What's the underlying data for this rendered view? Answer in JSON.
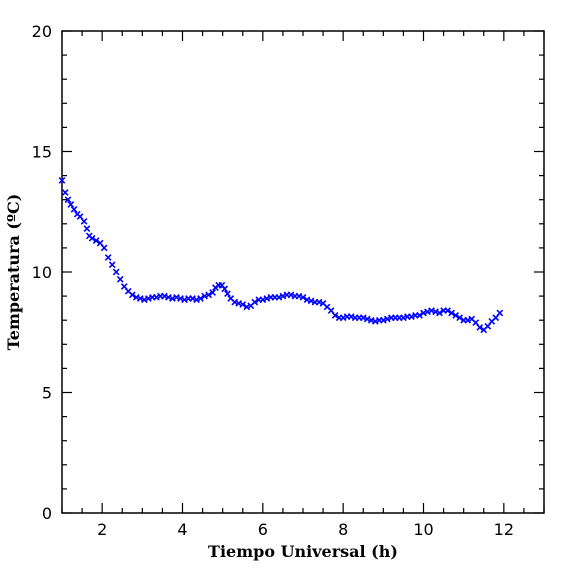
{
  "chart_data": {
    "type": "scatter",
    "title": "",
    "xlabel": "Tiempo Universal (h)",
    "ylabel": "Temperatura (ºC)",
    "xlim": [
      1,
      13
    ],
    "ylim": [
      0,
      20
    ],
    "xticks": [
      2,
      4,
      6,
      8,
      10,
      12
    ],
    "xtick_labels": [
      "2",
      "4",
      "6",
      "8",
      "10",
      "12"
    ],
    "yticks": [
      0,
      5,
      10,
      15,
      20
    ],
    "ytick_labels": [
      "0",
      "5",
      "10",
      "15",
      "20"
    ],
    "grid": false,
    "marker": "x",
    "marker_color": "#0000ff",
    "series": [
      {
        "name": "",
        "points": [
          [
            1.0,
            13.8
          ],
          [
            1.08,
            13.3
          ],
          [
            1.15,
            13.0
          ],
          [
            1.22,
            12.8
          ],
          [
            1.3,
            12.6
          ],
          [
            1.38,
            12.4
          ],
          [
            1.45,
            12.3
          ],
          [
            1.55,
            12.1
          ],
          [
            1.62,
            11.8
          ],
          [
            1.68,
            11.5
          ],
          [
            1.75,
            11.4
          ],
          [
            1.85,
            11.3
          ],
          [
            1.95,
            11.2
          ],
          [
            2.05,
            11.0
          ],
          [
            2.15,
            10.6
          ],
          [
            2.25,
            10.3
          ],
          [
            2.35,
            10.0
          ],
          [
            2.45,
            9.7
          ],
          [
            2.55,
            9.4
          ],
          [
            2.65,
            9.2
          ],
          [
            2.75,
            9.05
          ],
          [
            2.85,
            8.95
          ],
          [
            2.95,
            8.9
          ],
          [
            3.05,
            8.85
          ],
          [
            3.15,
            8.9
          ],
          [
            3.25,
            8.95
          ],
          [
            3.35,
            8.95
          ],
          [
            3.45,
            9.0
          ],
          [
            3.55,
            9.0
          ],
          [
            3.65,
            8.95
          ],
          [
            3.75,
            8.9
          ],
          [
            3.85,
            8.95
          ],
          [
            3.95,
            8.9
          ],
          [
            4.05,
            8.85
          ],
          [
            4.15,
            8.9
          ],
          [
            4.25,
            8.9
          ],
          [
            4.35,
            8.85
          ],
          [
            4.45,
            8.9
          ],
          [
            4.55,
            9.0
          ],
          [
            4.65,
            9.05
          ],
          [
            4.75,
            9.15
          ],
          [
            4.82,
            9.35
          ],
          [
            4.9,
            9.45
          ],
          [
            4.98,
            9.45
          ],
          [
            5.05,
            9.3
          ],
          [
            5.12,
            9.1
          ],
          [
            5.2,
            8.9
          ],
          [
            5.3,
            8.75
          ],
          [
            5.4,
            8.7
          ],
          [
            5.5,
            8.65
          ],
          [
            5.6,
            8.55
          ],
          [
            5.7,
            8.6
          ],
          [
            5.8,
            8.75
          ],
          [
            5.9,
            8.85
          ],
          [
            6.0,
            8.85
          ],
          [
            6.1,
            8.9
          ],
          [
            6.2,
            8.95
          ],
          [
            6.3,
            8.95
          ],
          [
            6.4,
            8.95
          ],
          [
            6.5,
            9.0
          ],
          [
            6.6,
            9.05
          ],
          [
            6.7,
            9.05
          ],
          [
            6.8,
            9.0
          ],
          [
            6.9,
            9.0
          ],
          [
            7.0,
            8.95
          ],
          [
            7.1,
            8.85
          ],
          [
            7.2,
            8.8
          ],
          [
            7.3,
            8.75
          ],
          [
            7.4,
            8.75
          ],
          [
            7.5,
            8.7
          ],
          [
            7.6,
            8.55
          ],
          [
            7.7,
            8.4
          ],
          [
            7.8,
            8.2
          ],
          [
            7.9,
            8.1
          ],
          [
            8.0,
            8.1
          ],
          [
            8.1,
            8.15
          ],
          [
            8.2,
            8.15
          ],
          [
            8.3,
            8.1
          ],
          [
            8.4,
            8.1
          ],
          [
            8.5,
            8.1
          ],
          [
            8.6,
            8.05
          ],
          [
            8.7,
            8.0
          ],
          [
            8.8,
            7.95
          ],
          [
            8.9,
            8.0
          ],
          [
            9.0,
            8.0
          ],
          [
            9.1,
            8.05
          ],
          [
            9.2,
            8.1
          ],
          [
            9.3,
            8.1
          ],
          [
            9.4,
            8.1
          ],
          [
            9.5,
            8.1
          ],
          [
            9.6,
            8.15
          ],
          [
            9.7,
            8.15
          ],
          [
            9.8,
            8.2
          ],
          [
            9.9,
            8.2
          ],
          [
            10.0,
            8.3
          ],
          [
            10.1,
            8.35
          ],
          [
            10.2,
            8.4
          ],
          [
            10.3,
            8.35
          ],
          [
            10.4,
            8.3
          ],
          [
            10.5,
            8.4
          ],
          [
            10.6,
            8.4
          ],
          [
            10.7,
            8.3
          ],
          [
            10.8,
            8.2
          ],
          [
            10.9,
            8.1
          ],
          [
            11.0,
            8.0
          ],
          [
            11.1,
            8.0
          ],
          [
            11.2,
            8.05
          ],
          [
            11.3,
            7.9
          ],
          [
            11.4,
            7.7
          ],
          [
            11.5,
            7.6
          ],
          [
            11.6,
            7.75
          ],
          [
            11.7,
            7.95
          ],
          [
            11.8,
            8.1
          ],
          [
            11.9,
            8.3
          ]
        ]
      }
    ]
  }
}
